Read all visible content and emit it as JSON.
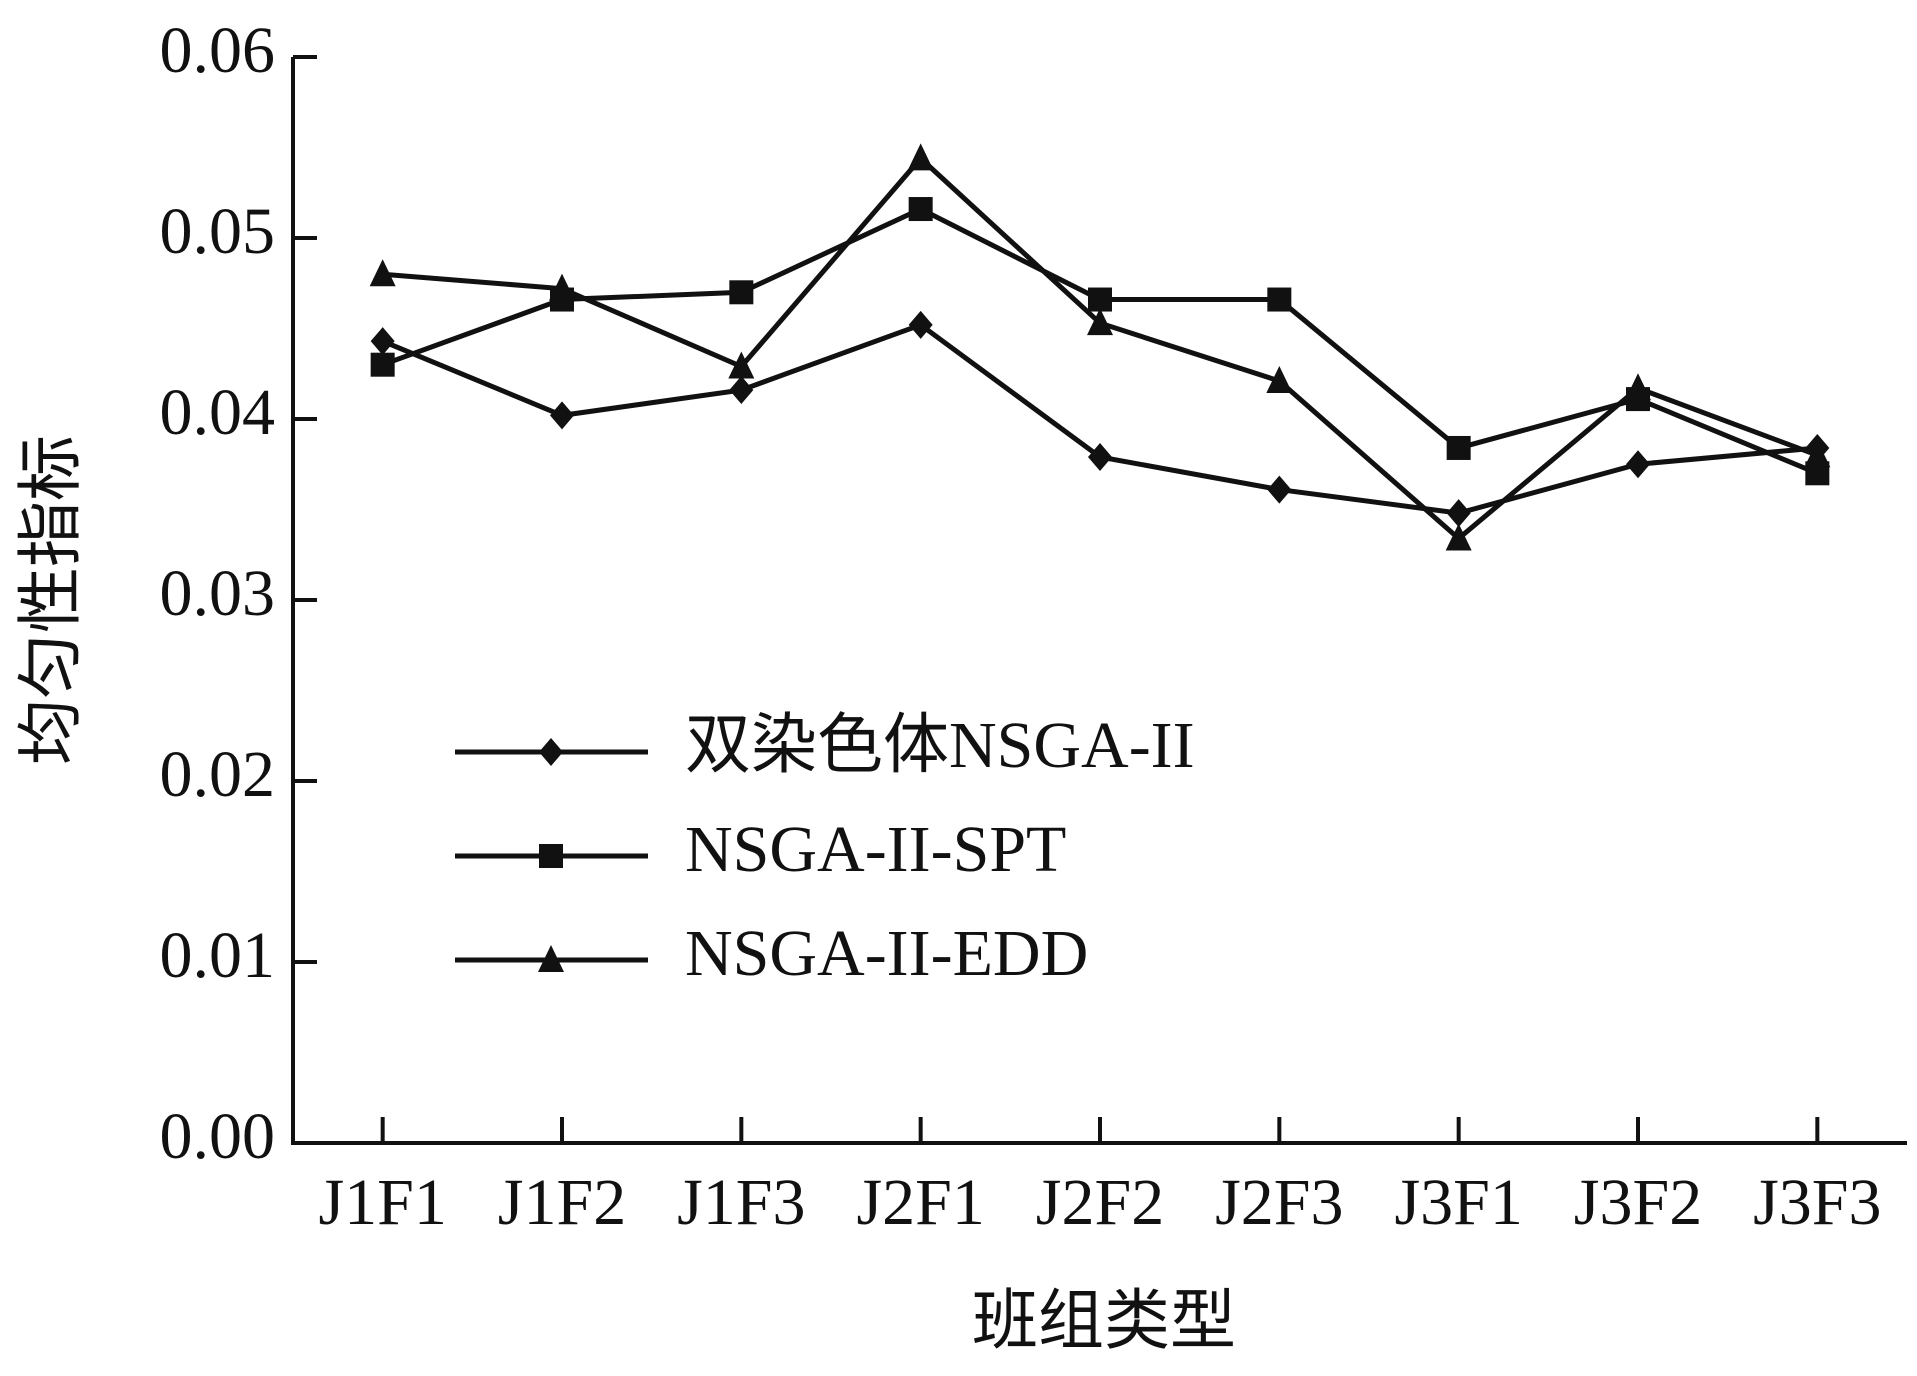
{
  "chart_data": {
    "type": "line",
    "x_label": "班组类型",
    "y_label": "均匀性指标",
    "categories": [
      "J1F1",
      "J1F2",
      "J1F3",
      "J2F1",
      "J2F2",
      "J2F3",
      "J3F1",
      "J3F2",
      "J3F3"
    ],
    "series": [
      {
        "name": "双染色体NSGA-II",
        "color": "#111111",
        "marker": "diamond",
        "values": [
          0.0443,
          0.0402,
          0.0416,
          0.0452,
          0.0379,
          0.0361,
          0.0348,
          0.0375,
          0.0384
        ]
      },
      {
        "name": "NSGA-II-SPT",
        "color": "#111111",
        "marker": "square",
        "values": [
          0.043,
          0.0466,
          0.047,
          0.0516,
          0.0466,
          0.0466,
          0.0384,
          0.0411,
          0.037
        ]
      },
      {
        "name": "NSGA-II-EDD",
        "color": "#111111",
        "marker": "triangle",
        "values": [
          0.048,
          0.0472,
          0.0429,
          0.0544,
          0.0453,
          0.0421,
          0.0334,
          0.0417,
          0.038
        ]
      }
    ],
    "ylim": [
      0,
      0.06
    ],
    "yticks": [
      {
        "value": 0,
        "label": "0.00"
      },
      0.01,
      0.02,
      0.03,
      0.04,
      0.05,
      0.06
    ],
    "grid": false,
    "legend": "center-left"
  }
}
